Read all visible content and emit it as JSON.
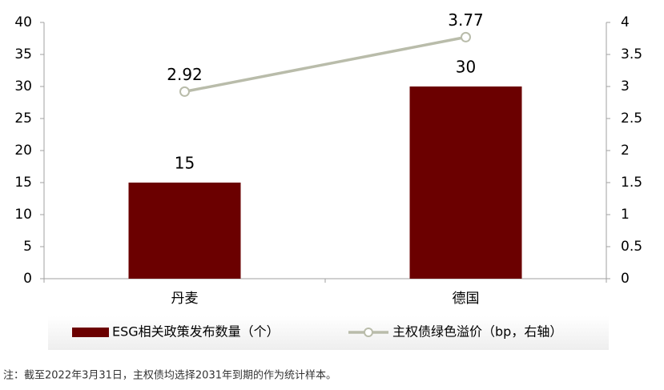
{
  "chart_data": {
    "type": "bar-line",
    "categories": [
      "丹麦",
      "德国"
    ],
    "series": [
      {
        "name": "ESG相关政策发布数量（个）",
        "type": "bar",
        "color": "#6b0000",
        "values": [
          15,
          30
        ]
      },
      {
        "name": "主权债绿色溢价（bp，右轴）",
        "type": "line",
        "axis": "y2",
        "color": "#b9bcaa",
        "values": [
          2.92,
          3.77
        ]
      }
    ],
    "ylim": [
      0,
      40
    ],
    "yticks": [
      0,
      5,
      10,
      15,
      20,
      25,
      30,
      35,
      40
    ],
    "y2lim": [
      0,
      4
    ],
    "y2ticks": [
      0,
      0.5,
      1,
      1.5,
      2,
      2.5,
      3,
      3.5,
      4
    ],
    "legend": "bottom",
    "note": "注：截至2022年3月31日，主权债均选择2031年到期的作为统计样本。"
  }
}
